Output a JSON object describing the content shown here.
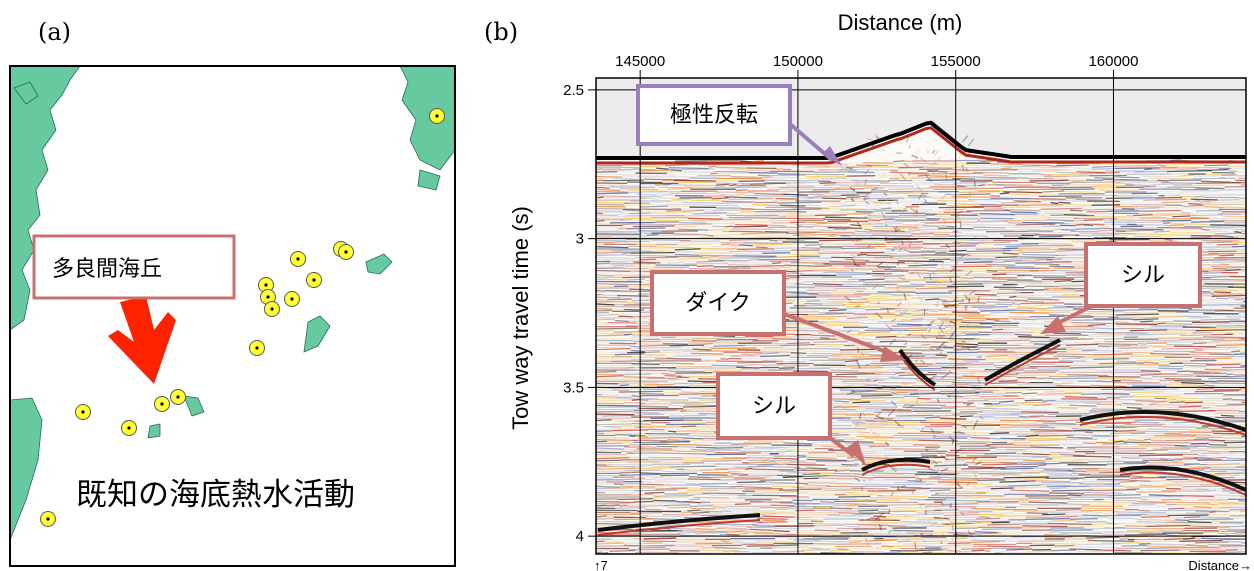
{
  "panel_a": {
    "label": "(a)",
    "callout_label": "多良間海丘",
    "caption": "既知の海底熱水活動",
    "land_color": "#66c9a0",
    "marker_color": "#ffff33",
    "vents": [
      {
        "name": "vent-1"
      },
      {
        "name": "vent-2"
      },
      {
        "name": "vent-3"
      },
      {
        "name": "vent-4"
      },
      {
        "name": "vent-5"
      },
      {
        "name": "vent-6"
      },
      {
        "name": "vent-7"
      },
      {
        "name": "vent-8"
      },
      {
        "name": "vent-9"
      },
      {
        "name": "vent-10"
      },
      {
        "name": "vent-11"
      },
      {
        "name": "vent-12"
      },
      {
        "name": "vent-13"
      },
      {
        "name": "vent-14"
      }
    ],
    "arrow_color": "#ff2200",
    "callout_border": "#c87070"
  },
  "panel_b": {
    "label": "(b)",
    "x_title": "Distance (m)",
    "y_title": "Tow way travel time (s)",
    "x_ticks": [
      "145000",
      "150000",
      "155000",
      "160000"
    ],
    "x_tick_values": [
      145000,
      150000,
      155000,
      160000
    ],
    "y_ticks": [
      "2.5",
      "3",
      "3.5",
      "4"
    ],
    "y_tick_values": [
      2.5,
      3.0,
      3.5,
      4.0
    ],
    "x_range": [
      143600,
      164200
    ],
    "y_range": [
      2.46,
      4.06
    ],
    "bottom_left_label": "↑7",
    "bottom_right_label": "Distance→",
    "annotations": {
      "polarity": "極性反転",
      "dike": "ダイク",
      "sill_right": "シル",
      "sill_left": "シル"
    },
    "polarity_border": "#9a7fb8",
    "annotation_border": "#c87070"
  }
}
